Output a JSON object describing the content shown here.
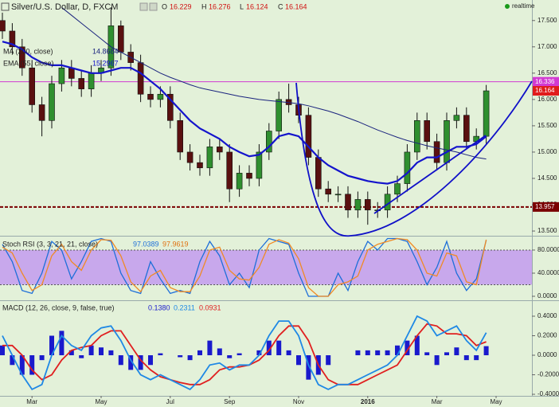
{
  "header": {
    "ohlc": [
      {
        "label": "O",
        "value": 16.229
      },
      {
        "label": "H",
        "value": 16.276
      },
      {
        "label": "L",
        "value": 16.124
      },
      {
        "label": "C",
        "value": 16.164
      }
    ],
    "status": "realtime"
  },
  "chart_data": [
    {
      "type": "candlestick",
      "title": "Silver/U.S. Dollar, D, FXCM",
      "up_color": "#2f8f2f",
      "down_color": "#5a1010",
      "open": [
        17.5,
        17.3,
        17.0,
        16.6,
        15.9,
        15.6,
        16.3,
        16.6,
        16.4,
        16.2,
        16.5,
        16.6,
        17.4,
        16.9,
        16.7,
        16.1,
        16.0,
        16.1,
        15.6,
        15.0,
        14.8,
        14.7,
        15.1,
        15.0,
        14.3,
        14.6,
        14.5,
        15.0,
        15.4,
        16.0,
        15.9,
        15.7,
        14.9,
        14.3,
        14.2,
        14.2,
        13.9,
        14.1,
        13.9,
        13.9,
        14.2,
        14.4,
        15.0,
        15.6,
        15.2,
        14.8,
        15.6,
        15.7,
        15.2,
        15.3,
        null,
        null
      ],
      "high": [
        17.65,
        17.45,
        17.15,
        16.75,
        16.05,
        16.45,
        16.75,
        16.75,
        16.55,
        16.65,
        16.75,
        17.75,
        17.5,
        17.05,
        16.85,
        16.25,
        16.25,
        16.25,
        15.75,
        15.15,
        14.95,
        15.25,
        15.25,
        15.15,
        14.75,
        14.75,
        15.15,
        15.55,
        16.15,
        16.3,
        16.05,
        15.85,
        15.05,
        14.45,
        14.35,
        14.35,
        14.25,
        14.25,
        14.05,
        14.35,
        14.55,
        15.15,
        15.75,
        15.75,
        15.35,
        15.75,
        15.85,
        15.85,
        15.45,
        16.276,
        null,
        null
      ],
      "low": [
        17.15,
        16.85,
        16.45,
        15.75,
        15.3,
        15.45,
        16.15,
        16.25,
        16.05,
        16.05,
        16.35,
        16.45,
        16.75,
        16.55,
        15.95,
        15.85,
        15.85,
        15.45,
        14.85,
        14.65,
        14.55,
        14.55,
        14.85,
        14.05,
        14.15,
        14.35,
        14.35,
        14.85,
        15.25,
        15.75,
        15.55,
        14.75,
        14.15,
        14.05,
        14.05,
        13.75,
        13.75,
        13.62,
        13.75,
        13.75,
        14.05,
        14.25,
        14.85,
        15.05,
        14.65,
        14.65,
        15.45,
        15.05,
        15.05,
        15.15,
        null,
        null
      ],
      "close": [
        17.3,
        17.0,
        16.6,
        15.9,
        15.6,
        16.3,
        16.6,
        16.4,
        16.2,
        16.5,
        16.6,
        17.4,
        16.9,
        16.7,
        16.1,
        16.0,
        16.1,
        15.6,
        15.0,
        14.8,
        14.7,
        15.1,
        15.0,
        14.3,
        14.6,
        14.5,
        15.0,
        15.4,
        16.0,
        15.9,
        15.7,
        14.9,
        14.3,
        14.2,
        14.2,
        13.9,
        14.1,
        13.9,
        13.9,
        14.2,
        14.4,
        15.0,
        15.6,
        15.2,
        14.8,
        15.6,
        15.7,
        15.2,
        15.3,
        16.164,
        null,
        null
      ],
      "overlays": [
        {
          "name": "EMA (55, close)",
          "color": "#1414cc",
          "width": 2.2,
          "values": [
            17.1,
            17.05,
            16.95,
            16.8,
            16.7,
            16.65,
            16.65,
            16.6,
            16.55,
            16.5,
            16.5,
            16.55,
            16.6,
            16.6,
            16.5,
            16.35,
            16.2,
            16.0,
            15.8,
            15.6,
            15.45,
            15.35,
            15.25,
            15.1,
            15.0,
            14.92,
            14.95,
            15.1,
            15.3,
            15.35,
            15.3,
            15.1,
            14.9,
            14.75,
            14.65,
            14.55,
            14.5,
            14.45,
            14.42,
            14.4,
            14.45,
            14.6,
            14.8,
            14.9,
            14.9,
            15.0,
            15.1,
            15.1,
            15.15,
            15.2967,
            null,
            null
          ]
        },
        {
          "name": "MA (200, close)",
          "color": "#1a237e",
          "width": 1,
          "values": [
            null,
            null,
            null,
            null,
            null,
            null,
            17.75,
            17.6,
            17.45,
            17.3,
            17.15,
            17.0,
            16.9,
            16.8,
            16.7,
            16.6,
            16.5,
            16.42,
            16.35,
            16.28,
            16.22,
            16.18,
            16.14,
            16.1,
            16.06,
            16.03,
            16.0,
            15.98,
            15.96,
            15.94,
            15.92,
            15.88,
            15.83,
            15.78,
            15.72,
            15.65,
            15.58,
            15.5,
            15.42,
            15.35,
            15.28,
            15.22,
            15.17,
            15.12,
            15.08,
            15.04,
            15.0,
            14.95,
            14.9,
            14.8684,
            null,
            null
          ]
        }
      ],
      "levels": [
        {
          "value": 16.336,
          "label": "16.336",
          "color": "#d23ad2",
          "line": "solid"
        },
        {
          "value": 16.164,
          "label": "16.164",
          "color": "#e01b1b",
          "line": "none"
        },
        {
          "value": 13.957,
          "label": "13.957",
          "color": "#7a0000",
          "line": "dashed"
        }
      ],
      "ylim": [
        13.41,
        17.89
      ],
      "yticks": [
        {
          "value": 17.5,
          "label": "17.500"
        },
        {
          "value": 17,
          "label": "17.000"
        },
        {
          "value": 16.5,
          "label": "16.500"
        },
        {
          "value": 16,
          "label": "16.000"
        },
        {
          "value": 15.5,
          "label": "15.500"
        },
        {
          "value": 15,
          "label": "15.000"
        },
        {
          "value": 14.5,
          "label": "14.500"
        },
        {
          "value": 14,
          "label": "14.000"
        },
        {
          "value": 13.5,
          "label": "13.500"
        }
      ]
    },
    {
      "type": "line",
      "title": "Stoch RSI (3, 3, 21, 21, close)",
      "band": [
        20,
        80
      ],
      "band_color": "#c8a8ec",
      "series": [
        {
          "color": "#1e6fd9",
          "values": [
            90,
            60,
            10,
            5,
            40,
            95,
            80,
            30,
            60,
            95,
            100,
            95,
            40,
            10,
            5,
            60,
            30,
            5,
            10,
            5,
            60,
            95,
            70,
            20,
            40,
            15,
            80,
            100,
            95,
            90,
            40,
            0,
            0,
            0,
            40,
            10,
            60,
            95,
            80,
            100,
            100,
            95,
            60,
            20,
            50,
            95,
            40,
            10,
            30,
            97.0389,
            null,
            null
          ]
        },
        {
          "color": "#f08a24",
          "values": [
            85,
            75,
            40,
            10,
            20,
            70,
            90,
            60,
            45,
            80,
            98,
            97,
            70,
            25,
            8,
            35,
            45,
            15,
            8,
            8,
            35,
            80,
            85,
            45,
            30,
            28,
            50,
            90,
            98,
            92,
            65,
            15,
            0,
            0,
            20,
            25,
            35,
            80,
            90,
            95,
            100,
            98,
            80,
            40,
            35,
            75,
            70,
            25,
            20,
            97.9619,
            null,
            null
          ]
        }
      ],
      "ylim": [
        -6.9,
        103.4
      ],
      "yticks": [
        {
          "value": 80,
          "label": "80.0000"
        },
        {
          "value": 40,
          "label": "40.0000"
        },
        {
          "value": 0,
          "label": "0.0000"
        }
      ]
    },
    {
      "type": "macd",
      "title": "MACD (12, 26, close, 9, false, true)",
      "categories": [
        null,
        null,
        null,
        "Mar",
        null,
        null,
        null,
        null,
        null,
        null,
        "May",
        null,
        null,
        null,
        null,
        null,
        null,
        "Jul",
        null,
        null,
        null,
        null,
        null,
        "Sep",
        null,
        null,
        null,
        null,
        null,
        null,
        "Nov",
        null,
        null,
        null,
        null,
        null,
        null,
        "2016",
        null,
        null,
        null,
        null,
        null,
        null,
        "Mar",
        null,
        null,
        null,
        null,
        null,
        "May",
        null
      ],
      "series": [
        {
          "kind": "line",
          "color": "#e02020",
          "last_label": "0.1380",
          "values": [
            0.1,
            0.1,
            0.0,
            -0.15,
            -0.25,
            -0.2,
            -0.05,
            0.05,
            0.08,
            0.1,
            0.2,
            0.25,
            0.25,
            0.1,
            -0.05,
            -0.15,
            -0.22,
            -0.25,
            -0.28,
            -0.3,
            -0.3,
            -0.25,
            -0.15,
            -0.12,
            -0.12,
            -0.1,
            -0.05,
            0.05,
            0.2,
            0.3,
            0.3,
            0.15,
            -0.1,
            -0.25,
            -0.3,
            -0.3,
            -0.3,
            -0.25,
            -0.2,
            -0.15,
            -0.1,
            0.05,
            0.2,
            0.32,
            0.3,
            0.22,
            0.22,
            0.2,
            0.1,
            0.138,
            null,
            null
          ]
        },
        {
          "kind": "line",
          "color": "#1e88e5",
          "last_label": "0.2311",
          "values": [
            0.2,
            0.0,
            -0.2,
            -0.35,
            -0.3,
            0.0,
            0.2,
            0.1,
            0.05,
            0.2,
            0.28,
            0.3,
            0.15,
            -0.05,
            -0.2,
            -0.25,
            -0.2,
            -0.25,
            -0.3,
            -0.35,
            -0.25,
            -0.1,
            -0.08,
            -0.15,
            -0.1,
            -0.1,
            0.0,
            0.2,
            0.35,
            0.35,
            0.2,
            -0.1,
            -0.3,
            -0.35,
            -0.3,
            -0.3,
            -0.25,
            -0.2,
            -0.15,
            -0.1,
            0.0,
            0.2,
            0.4,
            0.35,
            0.2,
            0.25,
            0.3,
            0.15,
            0.05,
            0.2311,
            null,
            null
          ]
        },
        {
          "kind": "histogram",
          "color": "#1a1acc",
          "last_label": "0.0931",
          "values": [
            0.1,
            -0.1,
            -0.2,
            -0.2,
            -0.05,
            0.2,
            0.25,
            0.05,
            -0.03,
            0.1,
            0.08,
            0.05,
            -0.1,
            -0.15,
            -0.15,
            -0.1,
            0.02,
            0.0,
            -0.02,
            -0.05,
            0.05,
            0.15,
            0.07,
            -0.03,
            0.02,
            0.0,
            0.05,
            0.15,
            0.15,
            0.05,
            -0.1,
            -0.25,
            -0.2,
            -0.1,
            0.0,
            0.0,
            0.05,
            0.05,
            0.05,
            0.05,
            0.1,
            0.15,
            0.2,
            0.03,
            -0.1,
            0.03,
            0.08,
            -0.05,
            -0.05,
            0.0931,
            null,
            null
          ]
        }
      ],
      "ylim": [
        -0.416,
        0.555
      ],
      "yticks": [
        {
          "value": 0.4,
          "label": "0.4000"
        },
        {
          "value": 0.2,
          "label": "0.2000"
        },
        {
          "value": 0,
          "label": "0.0000"
        },
        {
          "value": -0.2,
          "label": "-0.2000"
        },
        {
          "value": -0.4,
          "label": "-0.4000"
        }
      ]
    }
  ]
}
